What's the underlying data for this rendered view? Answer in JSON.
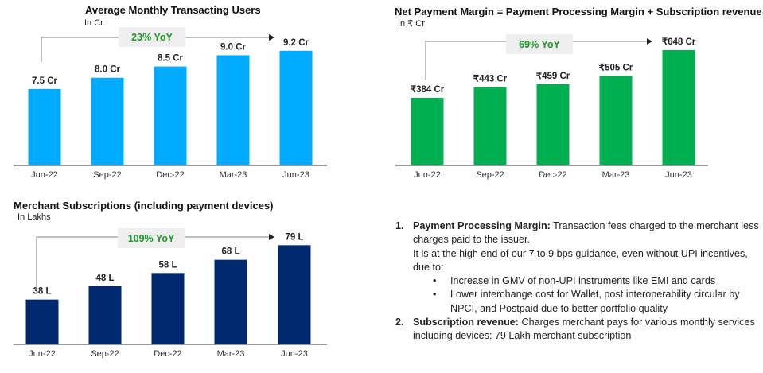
{
  "chart_data": [
    {
      "type": "bar",
      "title": "Average Monthly Transacting Users",
      "unit": "In Cr",
      "categories": [
        "Jun-22",
        "Sep-22",
        "Dec-22",
        "Mar-23",
        "Jun-23"
      ],
      "values": [
        7.5,
        8.0,
        8.5,
        9.0,
        9.2
      ],
      "data_labels": [
        "7.5 Cr",
        "8.0 Cr",
        "8.5 Cr",
        "9.0 Cr",
        "9.2 Cr"
      ],
      "ylim": [
        4.1,
        10.75
      ],
      "grid": false,
      "color": "#00AAFF",
      "annotation": "23% YoY"
    },
    {
      "type": "bar",
      "title": "Net Payment Margin = Payment Processing Margin + Subscription revenue",
      "unit": "In ₹ Cr",
      "categories": [
        "Jun-22",
        "Sep-22",
        "Dec-22",
        "Mar-23",
        "Jun-23"
      ],
      "values": [
        384,
        443,
        459,
        505,
        648
      ],
      "data_labels": [
        "₹384 Cr",
        "₹443 Cr",
        "₹459 Cr",
        "₹505 Cr",
        "₹648 Cr"
      ],
      "ylim": [
        10,
        837
      ],
      "grid": false,
      "color": "#00B050",
      "annotation": "69% YoY"
    },
    {
      "type": "bar",
      "title": "Merchant Subscriptions (including payment devices)",
      "unit": "In Lakhs",
      "categories": [
        "Jun-22",
        "Sep-22",
        "Dec-22",
        "Mar-23",
        "Jun-23"
      ],
      "values": [
        38,
        48,
        58,
        68,
        79
      ],
      "data_labels": [
        "38 L",
        "48 L",
        "58 L",
        "68 L",
        "79 L"
      ],
      "ylim": [
        4.2,
        117
      ],
      "grid": false,
      "color": "#002970",
      "annotation": "109% YoY"
    }
  ],
  "annotation_color": "#1E9A2A",
  "notes": {
    "item1_num": "1.",
    "item1_head": "Payment Processing Margin:",
    "item1_text": " Transaction fees charged to the merchant less charges paid to the issuer.",
    "item1_text2": "It is at the high end of our 7 to 9 bps guidance, even without UPI incentives, due to:",
    "bullet_char": "•",
    "bullet1": "Increase in GMV of non-UPI instruments like EMI and cards",
    "bullet2": "Lower interchange cost for Wallet, post interoperability circular by NPCI, and Postpaid due to better portfolio quality",
    "item2_num": "2.",
    "item2_head": "Subscription revenue:",
    "item2_text": " Charges merchant pays for various monthly services including devices: 79 Lakh merchant subscription"
  }
}
